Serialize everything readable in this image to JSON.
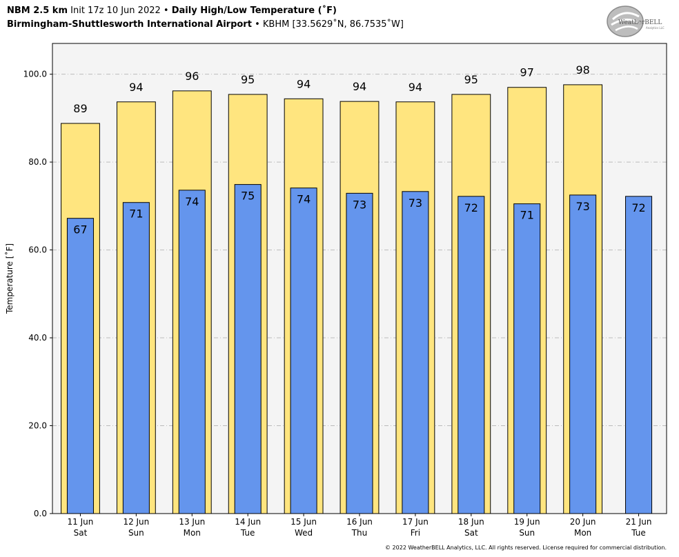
{
  "header": {
    "line1_bold": "NBM 2.5 km",
    "line1_init": "Init 17z 10 Jun 2022",
    "line1_sep": "•",
    "line1_title": "Daily High/Low Temperature (˚F)",
    "line2_bold": "Birmingham-Shuttlesworth International Airport",
    "line2_sep": "•",
    "line2_station": "KBHM [33.5629˚N, 86.7535˚W]"
  },
  "logo": {
    "text": "WeatherBELL",
    "sub": "Analytics LLC",
    "icon": "weatherbell-swirl-logo"
  },
  "footer": {
    "copyright": "© 2022 WeatherBELL Analytics, LLC. All rights reserved. License required for commercial distribution."
  },
  "colors": {
    "high_bar": "#ffe57f",
    "low_bar": "#6495ed",
    "plot_bg": "#f4f4f4",
    "grid": "#bbbbbb"
  },
  "chart_data": {
    "type": "bar",
    "ylabel": "Temperature [˚F]",
    "ylim": [
      0,
      107
    ],
    "yticks": [
      "0.0",
      "20.0",
      "40.0",
      "60.0",
      "80.0",
      "100.0"
    ],
    "ytick_values": [
      0,
      20,
      40,
      60,
      80,
      100
    ],
    "grid": true,
    "categories": [
      "11 Jun",
      "12 Jun",
      "13 Jun",
      "14 Jun",
      "15 Jun",
      "16 Jun",
      "17 Jun",
      "18 Jun",
      "19 Jun",
      "20 Jun",
      "21 Jun"
    ],
    "weekdays": [
      "Sat",
      "Sun",
      "Mon",
      "Tue",
      "Wed",
      "Thu",
      "Fri",
      "Sat",
      "Sun",
      "Mon",
      "Tue"
    ],
    "series": [
      {
        "key": "high",
        "values": [
          88.8,
          93.7,
          96.2,
          95.4,
          94.4,
          93.8,
          93.7,
          95.4,
          97.0,
          97.6,
          null
        ],
        "labels": [
          "89",
          "94",
          "96",
          "95",
          "94",
          "94",
          "94",
          "95",
          "97",
          "98",
          ""
        ]
      },
      {
        "key": "low",
        "values": [
          67.2,
          70.8,
          73.6,
          74.9,
          74.1,
          72.9,
          73.3,
          72.2,
          70.5,
          72.5,
          72.2
        ],
        "labels": [
          "67",
          "71",
          "74",
          "75",
          "74",
          "73",
          "73",
          "72",
          "71",
          "73",
          "72"
        ]
      }
    ]
  }
}
